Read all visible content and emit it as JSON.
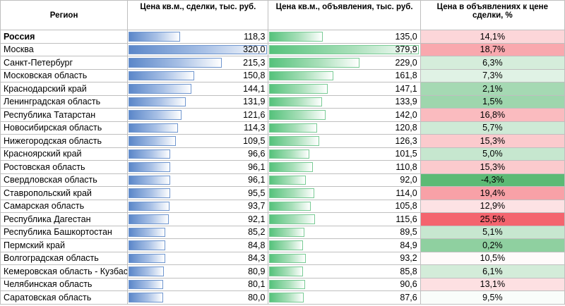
{
  "headers": {
    "region": "Регион",
    "deals": "Цена кв.м., сделки, тыс. руб.",
    "listings": "Цена кв.м., объявления, тыс. руб.",
    "diff": "Цена в объявлениях к цене сделки, %"
  },
  "bar_colors": {
    "deals": "#5b87c9",
    "listings": "#55c27b"
  },
  "diff_scale_colors": {
    "low": "#5cba75",
    "mid": "#ffffff",
    "high": "#f4646e"
  },
  "bar_max": {
    "deals": 320.0,
    "listings": 379.9
  },
  "rows": [
    {
      "region": "Россия",
      "deals": "118,3",
      "listings": "135,0",
      "diff": "14,1%",
      "bold": true
    },
    {
      "region": "Москва",
      "deals": "320,0",
      "listings": "379,9",
      "diff": "18,7%"
    },
    {
      "region": "Санкт-Петербург",
      "deals": "215,3",
      "listings": "229,0",
      "diff": "6,3%"
    },
    {
      "region": "Московская область",
      "deals": "150,8",
      "listings": "161,8",
      "diff": "7,3%"
    },
    {
      "region": "Краснодарский край",
      "deals": "144,1",
      "listings": "147,1",
      "diff": "2,1%"
    },
    {
      "region": "Ленинградская область",
      "deals": "131,9",
      "listings": "133,9",
      "diff": "1,5%"
    },
    {
      "region": "Республика Татарстан",
      "deals": "121,6",
      "listings": "142,0",
      "diff": "16,8%"
    },
    {
      "region": "Новосибирская область",
      "deals": "114,3",
      "listings": "120,8",
      "diff": "5,7%"
    },
    {
      "region": "Нижегородская область",
      "deals": "109,5",
      "listings": "126,3",
      "diff": "15,3%"
    },
    {
      "region": "Красноярский край",
      "deals": "96,6",
      "listings": "101,5",
      "diff": "5,0%"
    },
    {
      "region": "Ростовская область",
      "deals": "96,1",
      "listings": "110,8",
      "diff": "15,3%"
    },
    {
      "region": "Свердловская область",
      "deals": "96,1",
      "listings": "92,0",
      "diff": "-4,3%"
    },
    {
      "region": "Ставропольский край",
      "deals": "95,5",
      "listings": "114,0",
      "diff": "19,4%"
    },
    {
      "region": "Самарская область",
      "deals": "93,7",
      "listings": "105,8",
      "diff": "12,9%"
    },
    {
      "region": "Республика Дагестан",
      "deals": "92,1",
      "listings": "115,6",
      "diff": "25,5%"
    },
    {
      "region": "Республика Башкортостан",
      "deals": "85,2",
      "listings": "89,5",
      "diff": "5,1%"
    },
    {
      "region": "Пермский край",
      "deals": "84,8",
      "listings": "84,9",
      "diff": "0,2%"
    },
    {
      "region": "Волгоградская область",
      "deals": "84,3",
      "listings": "93,2",
      "diff": "10,5%"
    },
    {
      "region": "Кемеровская область - Кузбасс",
      "deals": "80,9",
      "listings": "85,8",
      "diff": "6,1%"
    },
    {
      "region": "Челябинская область",
      "deals": "80,1",
      "listings": "90,6",
      "diff": "13,1%"
    },
    {
      "region": "Саратовская область",
      "deals": "80,0",
      "listings": "87,6",
      "diff": "9,5%"
    }
  ]
}
